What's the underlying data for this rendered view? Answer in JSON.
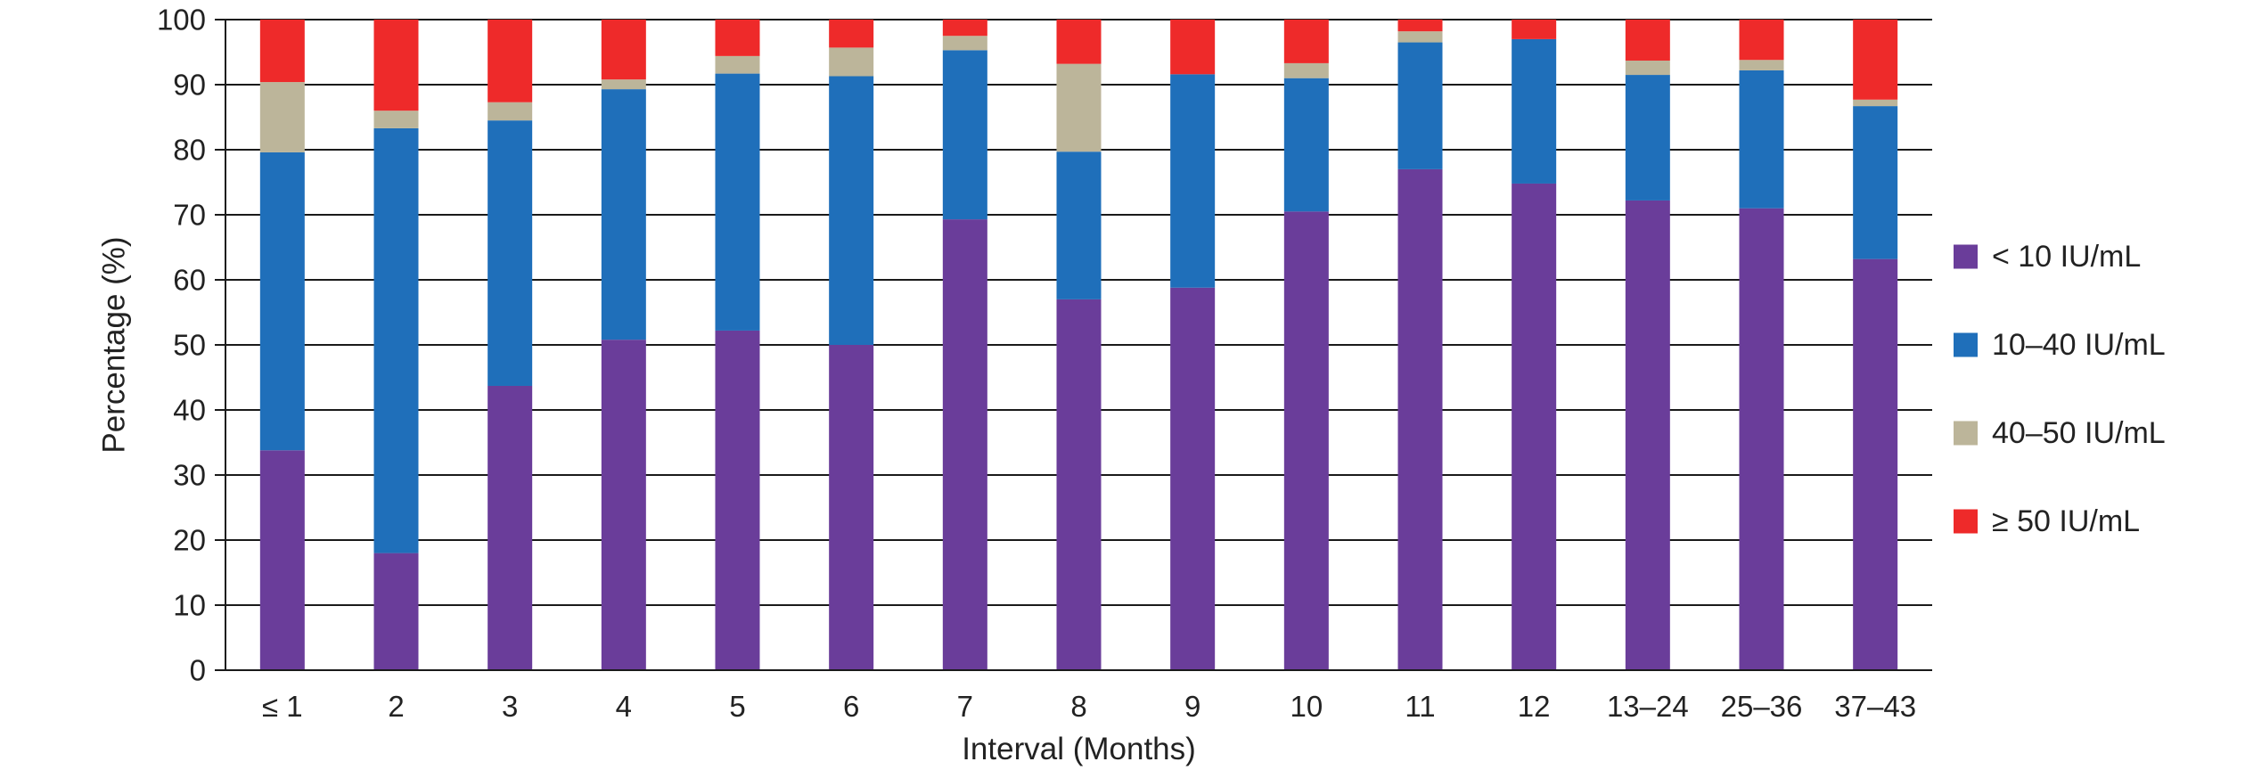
{
  "chart_data": {
    "type": "bar",
    "stacked": true,
    "title": "",
    "xlabel": "Interval (Months)",
    "ylabel": "Percentage (%)",
    "ylim": [
      0,
      100
    ],
    "yticks": [
      0,
      10,
      20,
      30,
      40,
      50,
      60,
      70,
      80,
      90,
      100
    ],
    "grid": "horizontal",
    "legend_position": "right",
    "categories": [
      "≤ 1",
      "2",
      "3",
      "4",
      "5",
      "6",
      "7",
      "8",
      "9",
      "10",
      "11",
      "12",
      "13–24",
      "25–36",
      "37–43"
    ],
    "series": [
      {
        "name": "< 10 IU/mL",
        "color": "#6a3d9a",
        "values": [
          33.8,
          18.0,
          43.7,
          50.8,
          52.2,
          50.0,
          69.3,
          57.0,
          58.8,
          70.5,
          77.0,
          74.8,
          72.2,
          71.0,
          63.2
        ]
      },
      {
        "name": "10–40 IU/mL",
        "color": "#1f6fba",
        "values": [
          45.8,
          65.3,
          40.8,
          38.5,
          39.5,
          41.3,
          26.0,
          22.7,
          32.8,
          20.5,
          19.5,
          22.2,
          19.3,
          21.2,
          23.5
        ]
      },
      {
        "name": "40–50 IU/mL",
        "color": "#bcb59a",
        "values": [
          10.8,
          2.7,
          2.8,
          1.5,
          2.7,
          4.4,
          2.2,
          13.5,
          0.0,
          2.3,
          1.7,
          0.0,
          2.2,
          1.6,
          1.0
        ]
      },
      {
        "name": "≥ 50 IU/mL",
        "color": "#ee2a2a",
        "values": [
          9.6,
          14.0,
          12.7,
          9.2,
          5.6,
          4.3,
          2.5,
          6.8,
          8.4,
          6.7,
          1.8,
          3.0,
          6.3,
          6.2,
          12.3
        ]
      }
    ]
  }
}
